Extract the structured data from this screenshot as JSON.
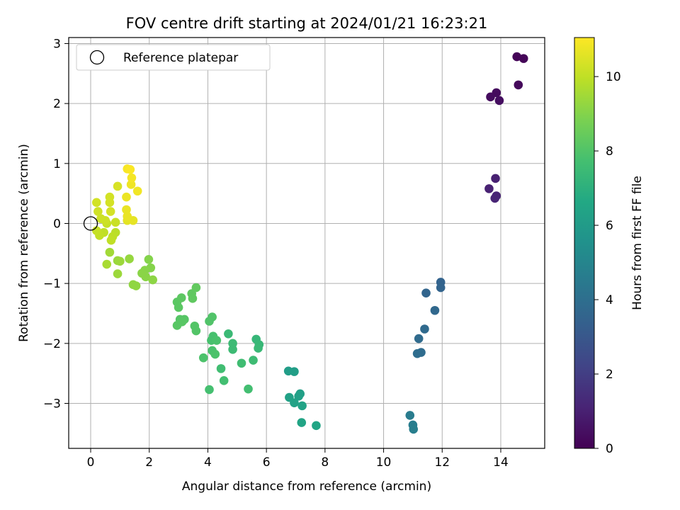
{
  "chart_data": {
    "type": "scatter",
    "title": "FOV centre drift starting at 2024/01/21 16:23:21",
    "xlabel": "Angular distance from reference (arcmin)",
    "ylabel": "Rotation from reference (arcmin)",
    "xlim": [
      -0.75,
      15.5
    ],
    "ylim": [
      -3.75,
      3.1
    ],
    "xticks": [
      0,
      2,
      4,
      6,
      8,
      10,
      12,
      14
    ],
    "yticks": [
      -3,
      -2,
      -1,
      0,
      1,
      2,
      3
    ],
    "grid": true,
    "legend": {
      "position": "top-left",
      "entries": [
        "Reference platepar"
      ]
    },
    "reference_point": {
      "label": "Reference platepar",
      "x": 0,
      "y": 0
    },
    "colorbar": {
      "label": "Hours from first FF file",
      "colormap": "viridis",
      "range": [
        0,
        11.05
      ],
      "ticks": [
        0,
        2,
        4,
        6,
        8,
        10
      ]
    },
    "points": [
      {
        "x": 14.55,
        "y": 2.78,
        "c": 0.1
      },
      {
        "x": 14.78,
        "y": 2.75,
        "c": 0.15
      },
      {
        "x": 14.6,
        "y": 2.31,
        "c": 0.25
      },
      {
        "x": 13.85,
        "y": 2.18,
        "c": 0.3
      },
      {
        "x": 13.65,
        "y": 2.11,
        "c": 0.35
      },
      {
        "x": 13.95,
        "y": 2.05,
        "c": 0.4
      },
      {
        "x": 13.82,
        "y": 0.75,
        "c": 1.0
      },
      {
        "x": 13.6,
        "y": 0.58,
        "c": 1.05
      },
      {
        "x": 13.85,
        "y": 0.46,
        "c": 1.1
      },
      {
        "x": 13.8,
        "y": 0.42,
        "c": 1.15
      },
      {
        "x": 11.95,
        "y": -0.98,
        "c": 3.5
      },
      {
        "x": 11.95,
        "y": -1.07,
        "c": 3.55
      },
      {
        "x": 11.45,
        "y": -1.16,
        "c": 3.6
      },
      {
        "x": 11.75,
        "y": -1.45,
        "c": 3.7
      },
      {
        "x": 11.4,
        "y": -1.76,
        "c": 3.8
      },
      {
        "x": 11.2,
        "y": -1.92,
        "c": 3.85
      },
      {
        "x": 11.28,
        "y": -2.15,
        "c": 3.9
      },
      {
        "x": 11.15,
        "y": -2.17,
        "c": 3.95
      },
      {
        "x": 10.9,
        "y": -3.2,
        "c": 4.6
      },
      {
        "x": 11.0,
        "y": -3.36,
        "c": 4.65
      },
      {
        "x": 11.02,
        "y": -3.43,
        "c": 4.7
      },
      {
        "x": 6.75,
        "y": -2.46,
        "c": 6.1
      },
      {
        "x": 6.95,
        "y": -2.47,
        "c": 6.15
      },
      {
        "x": 7.15,
        "y": -2.84,
        "c": 6.2
      },
      {
        "x": 7.1,
        "y": -2.88,
        "c": 6.25
      },
      {
        "x": 6.78,
        "y": -2.9,
        "c": 6.3
      },
      {
        "x": 6.95,
        "y": -2.99,
        "c": 6.35
      },
      {
        "x": 7.22,
        "y": -3.04,
        "c": 6.4
      },
      {
        "x": 7.2,
        "y": -3.32,
        "c": 6.45
      },
      {
        "x": 7.7,
        "y": -3.37,
        "c": 6.5
      },
      {
        "x": 5.65,
        "y": -1.93,
        "c": 7.3
      },
      {
        "x": 5.75,
        "y": -2.02,
        "c": 7.35
      },
      {
        "x": 5.72,
        "y": -2.08,
        "c": 7.4
      },
      {
        "x": 4.7,
        "y": -1.84,
        "c": 7.45
      },
      {
        "x": 4.85,
        "y": -2.0,
        "c": 7.5
      },
      {
        "x": 4.85,
        "y": -2.1,
        "c": 7.5
      },
      {
        "x": 5.55,
        "y": -2.28,
        "c": 7.55
      },
      {
        "x": 5.15,
        "y": -2.33,
        "c": 7.6
      },
      {
        "x": 4.45,
        "y": -2.42,
        "c": 7.65
      },
      {
        "x": 4.55,
        "y": -2.62,
        "c": 7.7
      },
      {
        "x": 5.38,
        "y": -2.76,
        "c": 7.7
      },
      {
        "x": 4.05,
        "y": -2.77,
        "c": 7.75
      },
      {
        "x": 4.18,
        "y": -1.88,
        "c": 7.8
      },
      {
        "x": 4.12,
        "y": -1.95,
        "c": 7.8
      },
      {
        "x": 4.3,
        "y": -1.95,
        "c": 7.85
      },
      {
        "x": 4.15,
        "y": -2.12,
        "c": 7.85
      },
      {
        "x": 4.25,
        "y": -2.18,
        "c": 7.9
      },
      {
        "x": 3.85,
        "y": -2.24,
        "c": 7.9
      },
      {
        "x": 4.15,
        "y": -1.56,
        "c": 8.0
      },
      {
        "x": 4.05,
        "y": -1.63,
        "c": 8.0
      },
      {
        "x": 3.55,
        "y": -1.71,
        "c": 8.05
      },
      {
        "x": 3.6,
        "y": -1.79,
        "c": 8.05
      },
      {
        "x": 3.2,
        "y": -1.6,
        "c": 8.1
      },
      {
        "x": 3.05,
        "y": -1.6,
        "c": 8.1
      },
      {
        "x": 3.12,
        "y": -1.64,
        "c": 8.15
      },
      {
        "x": 2.95,
        "y": -1.7,
        "c": 8.15
      },
      {
        "x": 2.95,
        "y": -1.31,
        "c": 8.2
      },
      {
        "x": 3.0,
        "y": -1.4,
        "c": 8.2
      },
      {
        "x": 3.1,
        "y": -1.24,
        "c": 8.25
      },
      {
        "x": 3.45,
        "y": -1.17,
        "c": 8.3
      },
      {
        "x": 3.48,
        "y": -1.25,
        "c": 8.3
      },
      {
        "x": 3.6,
        "y": -1.07,
        "c": 8.35
      },
      {
        "x": 1.98,
        "y": -0.6,
        "c": 9.0
      },
      {
        "x": 2.05,
        "y": -0.74,
        "c": 9.0
      },
      {
        "x": 1.85,
        "y": -0.78,
        "c": 9.05
      },
      {
        "x": 1.75,
        "y": -0.83,
        "c": 9.1
      },
      {
        "x": 1.88,
        "y": -0.89,
        "c": 9.1
      },
      {
        "x": 2.12,
        "y": -0.94,
        "c": 9.15
      },
      {
        "x": 1.45,
        "y": -1.02,
        "c": 9.2
      },
      {
        "x": 1.55,
        "y": -1.04,
        "c": 9.2
      },
      {
        "x": 1.32,
        "y": -0.59,
        "c": 9.3
      },
      {
        "x": 0.92,
        "y": -0.62,
        "c": 9.35
      },
      {
        "x": 1.0,
        "y": -0.63,
        "c": 9.4
      },
      {
        "x": 0.92,
        "y": -0.84,
        "c": 9.4
      },
      {
        "x": 0.65,
        "y": -0.48,
        "c": 9.5
      },
      {
        "x": 0.55,
        "y": -0.68,
        "c": 9.6
      },
      {
        "x": 0.85,
        "y": -0.15,
        "c": 9.9
      },
      {
        "x": 0.75,
        "y": -0.22,
        "c": 9.95
      },
      {
        "x": 0.7,
        "y": -0.28,
        "c": 10.0
      },
      {
        "x": 0.45,
        "y": -0.15,
        "c": 10.0
      },
      {
        "x": 0.3,
        "y": -0.2,
        "c": 10.05
      },
      {
        "x": 0.2,
        "y": -0.12,
        "c": 10.1
      },
      {
        "x": 0.55,
        "y": 0.0,
        "c": 10.1
      },
      {
        "x": 0.85,
        "y": 0.02,
        "c": 10.15
      },
      {
        "x": 0.35,
        "y": 0.08,
        "c": 10.2
      },
      {
        "x": 0.5,
        "y": 0.05,
        "c": 10.2
      },
      {
        "x": 0.25,
        "y": 0.2,
        "c": 10.25
      },
      {
        "x": 0.2,
        "y": 0.35,
        "c": 10.3
      },
      {
        "x": 0.65,
        "y": 0.44,
        "c": 10.3
      },
      {
        "x": 0.65,
        "y": 0.35,
        "c": 10.35
      },
      {
        "x": 0.68,
        "y": 0.2,
        "c": 10.35
      },
      {
        "x": 0.92,
        "y": 0.62,
        "c": 10.4
      },
      {
        "x": 1.25,
        "y": 0.05,
        "c": 10.6
      },
      {
        "x": 1.45,
        "y": 0.05,
        "c": 10.65
      },
      {
        "x": 1.22,
        "y": 0.23,
        "c": 10.7
      },
      {
        "x": 1.25,
        "y": 0.12,
        "c": 10.7
      },
      {
        "x": 1.22,
        "y": 0.44,
        "c": 10.75
      },
      {
        "x": 1.38,
        "y": 0.65,
        "c": 10.8
      },
      {
        "x": 1.6,
        "y": 0.54,
        "c": 10.85
      },
      {
        "x": 1.4,
        "y": 0.76,
        "c": 10.9
      },
      {
        "x": 1.25,
        "y": 0.91,
        "c": 10.95
      },
      {
        "x": 1.35,
        "y": 0.9,
        "c": 11.0
      }
    ]
  }
}
